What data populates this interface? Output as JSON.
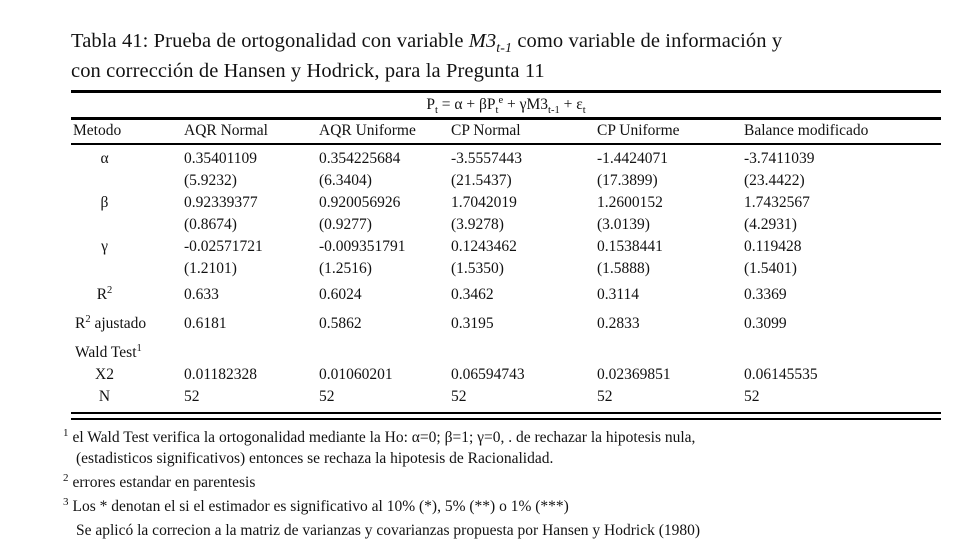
{
  "title": {
    "line1_parts": [
      {
        "text": "Tabla 41: Prueba de ortogonalidad con variable ",
        "style": "n"
      },
      {
        "text": "M3",
        "style": "i"
      },
      {
        "text": "t-1",
        "style": "isub"
      },
      {
        "text": " como variable de información y",
        "style": "n"
      }
    ],
    "line2": "con corrección de Hansen y Hodrick, para la Pregunta 11"
  },
  "equation": {
    "parts": [
      {
        "text": "P",
        "style": "n"
      },
      {
        "text": "t",
        "style": "sub"
      },
      {
        "text": " = α + βP",
        "style": "n"
      },
      {
        "text": "t",
        "style": "sub"
      },
      {
        "text": "e",
        "style": "sup"
      },
      {
        "text": " + γM3",
        "style": "n"
      },
      {
        "text": "t-1",
        "style": "sub"
      },
      {
        "text": " + ε",
        "style": "n"
      },
      {
        "text": "t",
        "style": "sub"
      }
    ]
  },
  "table": {
    "columns": [
      "Metodo",
      "AQR Normal",
      "AQR Uniforme",
      "CP Normal",
      "CP Uniforme",
      "Balance modificado"
    ],
    "rows": [
      {
        "label": {
          "pre": "α",
          "sup": "",
          "post": ""
        },
        "label_align": "center",
        "gap": "",
        "values": [
          "0.35401109",
          "0.354225684",
          "-3.5557443",
          "-1.4424071",
          "-3.7411039"
        ]
      },
      {
        "label": {
          "pre": "",
          "sup": "",
          "post": ""
        },
        "label_align": "center",
        "gap": "",
        "values": [
          "(5.9232)",
          "(6.3404)",
          "(21.5437)",
          "(17.3899)",
          "(23.4422)"
        ]
      },
      {
        "label": {
          "pre": "β",
          "sup": "",
          "post": ""
        },
        "label_align": "center",
        "gap": "",
        "values": [
          "0.92339377",
          "0.920056926",
          "1.7042019",
          "1.2600152",
          "1.7432567"
        ]
      },
      {
        "label": {
          "pre": "",
          "sup": "",
          "post": ""
        },
        "label_align": "center",
        "gap": "",
        "values": [
          "(0.8674)",
          "(0.9277)",
          "(3.9278)",
          "(3.0139)",
          "(4.2931)"
        ]
      },
      {
        "label": {
          "pre": "γ",
          "sup": "",
          "post": ""
        },
        "label_align": "center",
        "gap": "",
        "values": [
          "-0.02571721",
          "-0.009351791",
          "0.1243462",
          "0.1538441",
          "0.119428"
        ]
      },
      {
        "label": {
          "pre": "",
          "sup": "",
          "post": ""
        },
        "label_align": "center",
        "gap": "",
        "values": [
          "(1.2101)",
          "(1.2516)",
          "(1.5350)",
          "(1.5888)",
          "(1.5401)"
        ]
      },
      {
        "label": {
          "pre": "R",
          "sup": "2",
          "post": ""
        },
        "label_align": "center",
        "gap": "sm",
        "values": [
          "0.633",
          " 0.6024",
          "0.3462",
          "0.3114",
          "0.3369"
        ]
      },
      {
        "label": {
          "pre": "R",
          "sup": "2",
          "post": " ajustado"
        },
        "label_align": "left",
        "gap": "md",
        "values": [
          "0.6181",
          "0.5862",
          "0.3195",
          "0.2833",
          "0.3099"
        ]
      },
      {
        "label": {
          "pre": "Wald Test",
          "sup": "1",
          "post": ""
        },
        "label_align": "left",
        "gap": "md",
        "values": [
          "",
          "",
          "",
          "",
          ""
        ]
      },
      {
        "label": {
          "pre": "X2",
          "sup": "",
          "post": ""
        },
        "label_align": "center",
        "gap": "",
        "values": [
          "0.01182328",
          "0.01060201",
          "0.06594743",
          "0.02369851",
          "0.06145535"
        ]
      },
      {
        "label": {
          "pre": "N",
          "sup": "",
          "post": ""
        },
        "label_align": "center",
        "gap": "",
        "values": [
          "52",
          "52",
          "52",
          "52",
          "52"
        ]
      }
    ]
  },
  "footnotes": [
    {
      "sup": "1",
      "lines": [
        "el Wald Test verifica la ortogonalidad mediante la Ho: α=0;  β=1; γ=0, . de rechazar la hipotesis nula,",
        "(estadisticos significativos)  entonces se rechaza la hipotesis de Racionalidad."
      ]
    },
    {
      "sup": "2",
      "lines": [
        "errores estandar en parentesis"
      ]
    },
    {
      "sup": "3",
      "lines": [
        "Los * denotan el si el estimador es significativo al 10% (*), 5% (**) o 1% (***)"
      ]
    },
    {
      "sup": "",
      "lines": [
        "Se aplicó la correcion a la matriz de varianzas y covarianzas propuesta por Hansen y Hodrick (1980)"
      ]
    }
  ]
}
